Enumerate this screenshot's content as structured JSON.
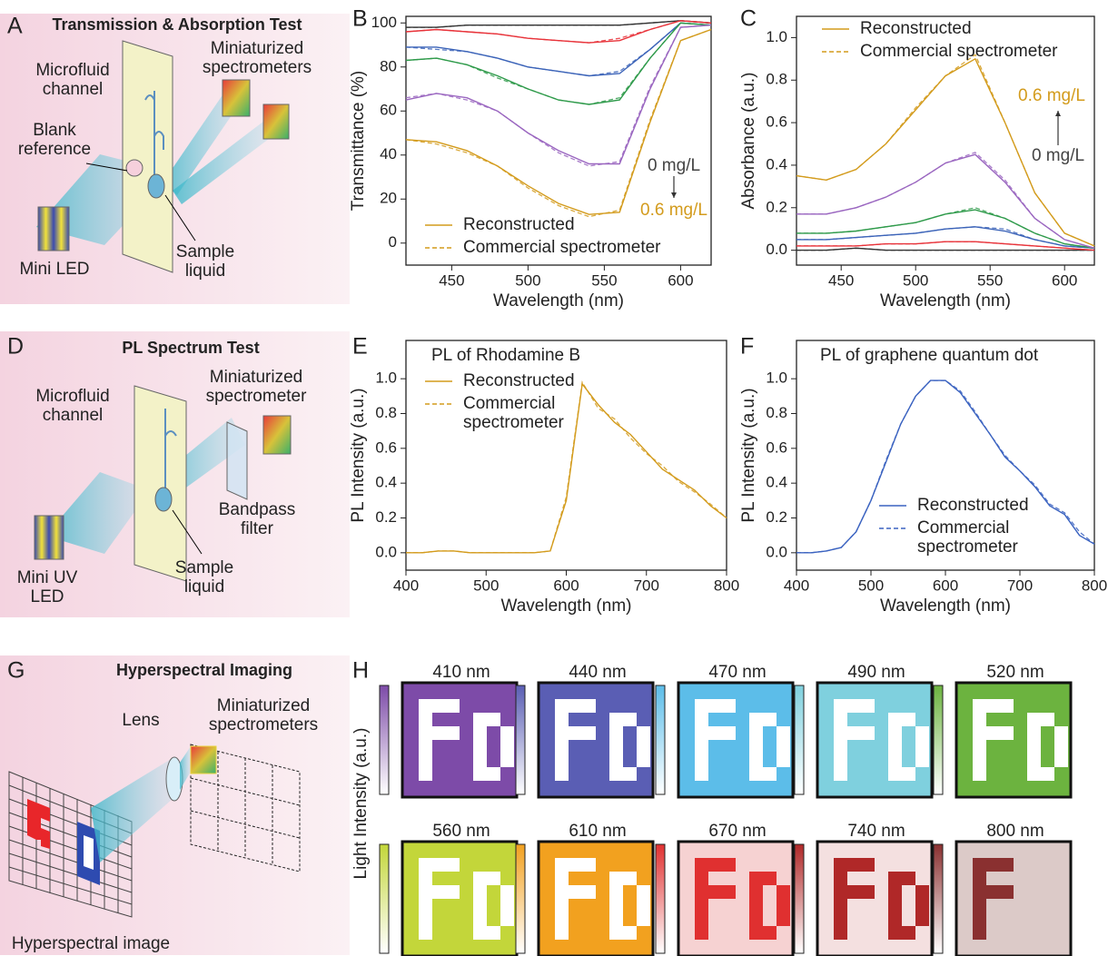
{
  "diagrams": [
    {
      "letter": "A",
      "title": "Transmission & Absorption Test",
      "labels": [
        [
          "Microfluid",
          "channel"
        ],
        [
          "Blank",
          "reference"
        ],
        [
          "Miniaturized",
          "spectrometers"
        ],
        [
          "Sample",
          "liquid"
        ],
        [
          "Mini LED"
        ]
      ]
    },
    {
      "letter": "D",
      "title": "PL Spectrum Test",
      "labels": [
        [
          "Microfluid",
          "channel"
        ],
        [
          "Miniaturized",
          "spectrometer"
        ],
        [
          "Bandpass",
          "filter"
        ],
        [
          "Sample",
          "liquid"
        ],
        [
          "Mini UV",
          "LED"
        ]
      ]
    },
    {
      "letter": "G",
      "title": "Hyperspectral Imaging",
      "labels": [
        [
          "Miniaturized",
          "spectrometers"
        ],
        [
          "Lens"
        ],
        [
          "Hyperspectral image"
        ]
      ]
    }
  ],
  "chart_data": [
    {
      "panel": "B",
      "type": "line",
      "xlabel": "Wavelength (nm)",
      "ylabel": "Transmittance (%)",
      "x": [
        420,
        440,
        460,
        480,
        500,
        520,
        540,
        560,
        580,
        600,
        620
      ],
      "xlim": [
        420,
        620
      ],
      "xticks": [
        450,
        500,
        550,
        600
      ],
      "ylim": [
        -10,
        103
      ],
      "yticks": [
        0,
        20,
        40,
        60,
        80,
        100
      ],
      "legend": [
        [
          "Reconstructed"
        ],
        [
          "Commercial spectrometer"
        ]
      ],
      "legend_color": "#d39b1c",
      "legend_loc": "lower left",
      "series": [
        {
          "color": "#333333",
          "values": [
            98,
            98,
            99,
            99,
            99,
            99,
            99,
            99,
            100,
            101,
            100
          ],
          "commercial_values": [
            98,
            98,
            99,
            99,
            99,
            99,
            99,
            99,
            100,
            101,
            100
          ]
        },
        {
          "color": "#e8333a",
          "values": [
            96,
            97,
            96,
            95,
            93,
            92,
            91,
            92,
            97,
            101,
            100
          ],
          "commercial_values": [
            96,
            97,
            96,
            95,
            93,
            92,
            91,
            93,
            97,
            101,
            100
          ]
        },
        {
          "color": "#3b63b8",
          "values": [
            89,
            89,
            87,
            84,
            80,
            78,
            76,
            77,
            88,
            100,
            99
          ],
          "commercial_values": [
            89,
            88,
            87,
            84,
            80,
            78,
            76,
            78,
            88,
            100,
            99
          ]
        },
        {
          "color": "#2e9a4a",
          "values": [
            83,
            84,
            81,
            76,
            70,
            65,
            63,
            65,
            84,
            100,
            99
          ],
          "commercial_values": [
            83,
            84,
            81,
            75,
            70,
            65,
            63,
            66,
            84,
            100,
            99
          ]
        },
        {
          "color": "#9a66c0",
          "values": [
            65,
            68,
            66,
            60,
            50,
            42,
            36,
            36,
            70,
            98,
            99
          ],
          "commercial_values": [
            66,
            68,
            65,
            60,
            50,
            41,
            35,
            37,
            71,
            98,
            99
          ]
        },
        {
          "color": "#d39b1c",
          "values": [
            47,
            46,
            42,
            35,
            26,
            18,
            13,
            14,
            55,
            92,
            97
          ],
          "commercial_values": [
            47,
            45,
            41,
            35,
            25,
            17,
            12,
            15,
            56,
            92,
            97
          ]
        }
      ],
      "annotations": [
        {
          "text": "0 mg/L",
          "color": "#444444"
        },
        {
          "text": "0.6 mg/L",
          "color": "#d39b1c"
        }
      ]
    },
    {
      "panel": "C",
      "type": "line",
      "xlabel": "Wavelength (nm)",
      "ylabel": "Absorbance (a.u.)",
      "x": [
        420,
        440,
        460,
        480,
        500,
        520,
        540,
        560,
        580,
        600,
        620
      ],
      "xlim": [
        420,
        620
      ],
      "xticks": [
        450,
        500,
        550,
        600
      ],
      "ylim": [
        -0.07,
        1.1
      ],
      "yticks": [
        {
          "value": 0,
          "label": "0.0"
        },
        0.2,
        0.4,
        0.6,
        0.8,
        {
          "value": 1,
          "label": "1.0"
        }
      ],
      "legend": [
        [
          "Reconstructed"
        ],
        [
          "Commercial spectrometer"
        ]
      ],
      "legend_color": "#d39b1c",
      "legend_loc": "upper left",
      "series": [
        {
          "color": "#333333",
          "values": [
            0,
            0,
            0.01,
            0,
            0,
            0,
            0,
            0,
            0,
            0,
            0
          ],
          "commercial_values": [
            0,
            0,
            0.01,
            0,
            0,
            0,
            0,
            0,
            0,
            0,
            0
          ]
        },
        {
          "color": "#e8333a",
          "values": [
            0.02,
            0.02,
            0.02,
            0.03,
            0.03,
            0.04,
            0.04,
            0.03,
            0.02,
            0.01,
            0
          ],
          "commercial_values": [
            0.02,
            0.02,
            0.02,
            0.03,
            0.03,
            0.04,
            0.04,
            0.03,
            0.02,
            0.01,
            0
          ]
        },
        {
          "color": "#3b63b8",
          "values": [
            0.05,
            0.05,
            0.06,
            0.07,
            0.08,
            0.1,
            0.11,
            0.09,
            0.05,
            0.02,
            0.01
          ],
          "commercial_values": [
            0.05,
            0.05,
            0.06,
            0.07,
            0.08,
            0.1,
            0.11,
            0.1,
            0.05,
            0.02,
            0.01
          ]
        },
        {
          "color": "#2e9a4a",
          "values": [
            0.08,
            0.08,
            0.09,
            0.11,
            0.13,
            0.17,
            0.19,
            0.15,
            0.08,
            0.03,
            0.01
          ],
          "commercial_values": [
            0.08,
            0.08,
            0.09,
            0.11,
            0.13,
            0.17,
            0.2,
            0.15,
            0.08,
            0.03,
            0.01
          ]
        },
        {
          "color": "#9a66c0",
          "values": [
            0.17,
            0.17,
            0.2,
            0.25,
            0.32,
            0.41,
            0.45,
            0.32,
            0.15,
            0.05,
            0.01
          ],
          "commercial_values": [
            0.17,
            0.17,
            0.2,
            0.25,
            0.32,
            0.41,
            0.46,
            0.33,
            0.15,
            0.05,
            0.01
          ]
        },
        {
          "color": "#d39b1c",
          "values": [
            0.35,
            0.33,
            0.38,
            0.5,
            0.66,
            0.82,
            0.9,
            0.6,
            0.27,
            0.08,
            0.02
          ],
          "commercial_values": [
            0.35,
            0.33,
            0.38,
            0.5,
            0.67,
            0.82,
            0.92,
            0.6,
            0.27,
            0.08,
            0.02
          ]
        }
      ],
      "annotations": [
        {
          "text": "0.6 mg/L",
          "color": "#d39b1c"
        },
        {
          "text": "0 mg/L",
          "color": "#444444"
        }
      ]
    },
    {
      "panel": "E",
      "type": "line",
      "title": "PL of Rhodamine B",
      "xlabel": "Wavelength (nm)",
      "ylabel": "PL Intensity (a.u.)",
      "x": [
        400,
        420,
        440,
        460,
        480,
        500,
        520,
        540,
        560,
        580,
        600,
        620,
        640,
        660,
        680,
        700,
        720,
        740,
        760,
        780,
        800
      ],
      "xlim": [
        400,
        800
      ],
      "xticks": [
        400,
        500,
        600,
        700,
        800
      ],
      "ylim": [
        -0.1,
        1.22
      ],
      "yticks": [
        {
          "value": 0,
          "label": "0.0"
        },
        0.2,
        0.4,
        0.6,
        0.8,
        {
          "value": 1,
          "label": "1.0"
        }
      ],
      "legend": [
        [
          "Reconstructed"
        ],
        [
          "Commercial",
          "spectrometer"
        ]
      ],
      "legend_color": "#d39b1c",
      "legend_loc": "upper left",
      "series": [
        {
          "color": "#d39b1c",
          "values": [
            0,
            0,
            0.01,
            0.01,
            0,
            0,
            0,
            0,
            0,
            0.01,
            0.3,
            0.97,
            0.85,
            0.75,
            0.68,
            0.58,
            0.48,
            0.42,
            0.36,
            0.27,
            0.2
          ],
          "commercial_values": [
            0,
            0,
            0.01,
            0.01,
            0,
            0,
            0,
            0,
            0,
            0.01,
            0.32,
            0.98,
            0.83,
            0.77,
            0.66,
            0.57,
            0.5,
            0.41,
            0.35,
            0.28,
            0.2
          ]
        }
      ]
    },
    {
      "panel": "F",
      "type": "line",
      "title": "PL of graphene quantum dot",
      "xlabel": "Wavelength (nm)",
      "ylabel": "PL Intensity (a.u.)",
      "x": [
        400,
        420,
        440,
        460,
        480,
        500,
        520,
        540,
        560,
        580,
        600,
        620,
        640,
        660,
        680,
        700,
        720,
        740,
        760,
        780,
        800
      ],
      "xlim": [
        400,
        800
      ],
      "xticks": [
        400,
        500,
        600,
        700,
        800
      ],
      "ylim": [
        -0.1,
        1.22
      ],
      "yticks": [
        {
          "value": 0,
          "label": "0.0"
        },
        0.2,
        0.4,
        0.6,
        0.8,
        {
          "value": 1,
          "label": "1.0"
        }
      ],
      "legend": [
        [
          "Reconstructed"
        ],
        [
          "Commercial",
          "spectrometer"
        ]
      ],
      "legend_color": "#3a62c0",
      "legend_loc": "lower left",
      "series": [
        {
          "color": "#3a62c0",
          "values": [
            0,
            0,
            0.01,
            0.03,
            0.12,
            0.3,
            0.52,
            0.74,
            0.9,
            0.99,
            0.99,
            0.92,
            0.8,
            0.68,
            0.55,
            0.47,
            0.38,
            0.27,
            0.22,
            0.1,
            0.05
          ],
          "commercial_values": [
            0,
            0,
            0.01,
            0.03,
            0.12,
            0.3,
            0.53,
            0.74,
            0.9,
            0.99,
            0.99,
            0.93,
            0.81,
            0.68,
            0.56,
            0.47,
            0.39,
            0.28,
            0.23,
            0.12,
            0.05
          ]
        }
      ]
    }
  ],
  "hyperspectral": {
    "letter": "H",
    "ylabel": "Light Intensity (a.u.)",
    "tiles": [
      {
        "label": "410 nm",
        "color": "#7d4ba8",
        "letter_color": "#ffffff"
      },
      {
        "label": "440 nm",
        "color": "#5a5eb4",
        "letter_color": "#ffffff"
      },
      {
        "label": "470 nm",
        "color": "#5cbde9",
        "letter_color": "#ffffff"
      },
      {
        "label": "490 nm",
        "color": "#7fd0de",
        "letter_color": "#ffffff"
      },
      {
        "label": "520 nm",
        "color": "#6cb33f",
        "letter_color": "#ffffff"
      },
      {
        "label": "560 nm",
        "color": "#c3d63a",
        "letter_color": "#ffffff"
      },
      {
        "label": "610 nm",
        "color": "#f2a11f",
        "letter_color": "#ffffff"
      },
      {
        "label": "670 nm",
        "color": "#f6d2d2",
        "letter_color": "#e03030"
      },
      {
        "label": "740 nm",
        "color": "#f4e0e0",
        "letter_color": "#b02828"
      },
      {
        "label": "800 nm",
        "color": "#dccac8",
        "letter_color": "#8a3030"
      }
    ]
  }
}
